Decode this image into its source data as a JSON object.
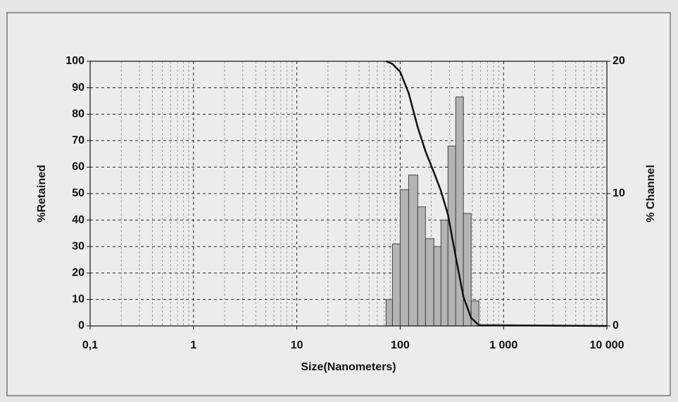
{
  "chart_data": {
    "type": "histogram",
    "xlabel": "Size(Nanometers)",
    "ylabel": "%Retained",
    "y2label": "% Channel",
    "log_x": true,
    "grid": true,
    "minor_grid": true,
    "xlim": [
      0.1,
      10000
    ],
    "xticks": [
      {
        "value": 0.1,
        "label": "0,1"
      },
      1,
      10,
      100,
      {
        "value": 1000,
        "label": "1 000"
      },
      {
        "value": 10000,
        "label": "10 000"
      }
    ],
    "ylim": [
      0,
      100
    ],
    "yticks": [
      0,
      10,
      20,
      30,
      40,
      50,
      60,
      70,
      80,
      90,
      100
    ],
    "y2lim": [
      0,
      20
    ],
    "y2ticks": [
      0,
      10,
      20
    ],
    "bins": [
      73.1,
      84.2,
      100,
      120.7,
      147.9,
      175.7,
      212,
      248,
      290,
      345,
      409,
      486,
      578
    ],
    "values": [
      2.0,
      6.2,
      10.3,
      11.4,
      9.0,
      6.6,
      6.0,
      8.0,
      13.6,
      17.3,
      8.5,
      1.9
    ],
    "axis": "y2",
    "color": "#b4b4b4",
    "line": {
      "x": [
        73.1,
        84.2,
        100,
        120.7,
        147.9,
        175.7,
        212,
        248,
        290,
        345,
        409,
        486,
        578,
        10000
      ],
      "values": [
        100,
        99,
        96,
        88,
        75,
        66,
        58,
        51,
        42,
        26,
        11,
        3,
        0.3,
        0
      ],
      "color": "#111111"
    }
  }
}
